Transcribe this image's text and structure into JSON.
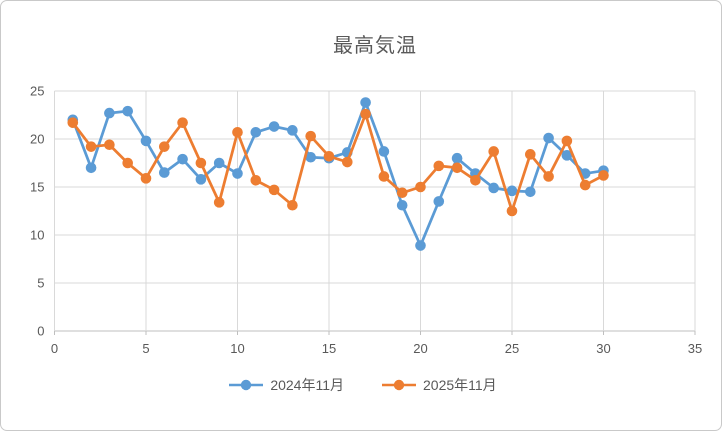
{
  "chart_data": {
    "type": "line",
    "title": "最高気温",
    "xlabel": "",
    "ylabel": "",
    "xlim": [
      0,
      35
    ],
    "ylim": [
      0,
      25
    ],
    "x_ticks": [
      0,
      5,
      10,
      15,
      20,
      25,
      30,
      35
    ],
    "y_ticks": [
      0,
      5,
      10,
      15,
      20,
      25
    ],
    "grid": true,
    "legend_position": "bottom",
    "x": [
      1,
      2,
      3,
      4,
      5,
      6,
      7,
      8,
      9,
      10,
      11,
      12,
      13,
      14,
      15,
      16,
      17,
      18,
      19,
      20,
      21,
      22,
      23,
      24,
      25,
      26,
      27,
      28,
      29,
      30
    ],
    "series": [
      {
        "name": "2024年11月",
        "color": "#5B9BD5",
        "values": [
          22.0,
          17.0,
          22.7,
          22.9,
          19.8,
          16.5,
          17.9,
          15.8,
          17.5,
          16.4,
          20.7,
          21.3,
          20.9,
          18.1,
          18.0,
          18.6,
          23.8,
          18.7,
          13.1,
          8.9,
          13.5,
          18.0,
          16.4,
          14.9,
          14.6,
          14.5,
          20.1,
          18.3,
          16.4,
          16.7
        ]
      },
      {
        "name": "2025年11月",
        "color": "#ED7D31",
        "values": [
          21.7,
          19.2,
          19.4,
          17.5,
          15.9,
          19.2,
          21.7,
          17.5,
          13.4,
          20.7,
          15.7,
          14.7,
          13.1,
          20.3,
          18.2,
          17.6,
          22.6,
          16.1,
          14.4,
          15.0,
          17.2,
          17.0,
          15.7,
          18.7,
          12.5,
          18.4,
          16.1,
          19.8,
          15.2,
          16.2
        ]
      }
    ],
    "colors": {
      "grid": "#D9D9D9",
      "axis": "#BFBFBF",
      "tick_label": "#595959",
      "title": "#595959"
    }
  }
}
